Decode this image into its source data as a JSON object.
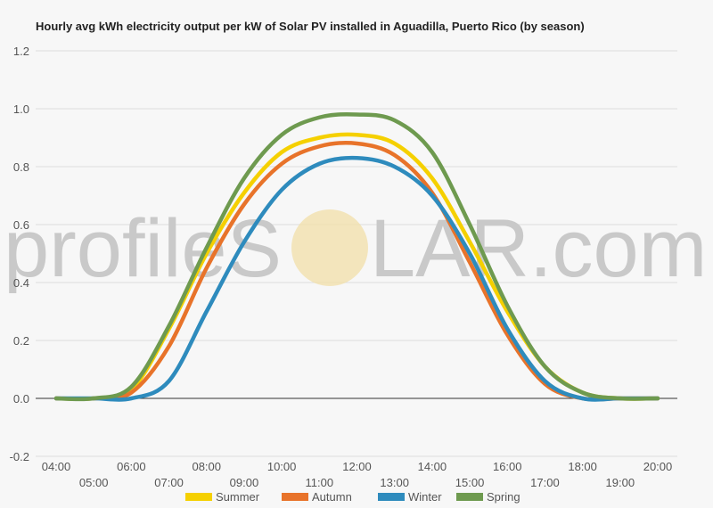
{
  "chart_data": {
    "type": "line",
    "title": "Hourly avg kWh electricity output per kW of Solar PV installed in Aguadilla, Puerto Rico (by season)",
    "xlabel": "",
    "ylabel": "",
    "ylim": [
      -0.2,
      1.2
    ],
    "yticks": [
      "-0.2",
      "0.0",
      "0.2",
      "0.4",
      "0.6",
      "0.8",
      "1.0",
      "1.2"
    ],
    "yticks_values": [
      -0.2,
      0,
      0.2,
      0.4,
      0.6,
      0.8,
      1.0,
      1.2
    ],
    "categories": [
      "04:00",
      "05:00",
      "06:00",
      "07:00",
      "08:00",
      "09:00",
      "10:00",
      "11:00",
      "12:00",
      "13:00",
      "14:00",
      "15:00",
      "16:00",
      "17:00",
      "18:00",
      "19:00",
      "20:00"
    ],
    "grid": true,
    "legend_position": "bottom",
    "watermark": {
      "left": "profileS",
      "right": "LAR.com"
    },
    "series": [
      {
        "name": "Summer",
        "color": "#f5d000",
        "values": [
          0,
          0,
          0.03,
          0.24,
          0.5,
          0.71,
          0.85,
          0.9,
          0.91,
          0.88,
          0.76,
          0.54,
          0.3,
          0.11,
          0.02,
          0,
          0
        ]
      },
      {
        "name": "Autumn",
        "color": "#e8732a",
        "values": [
          0,
          0,
          0.02,
          0.18,
          0.45,
          0.67,
          0.81,
          0.87,
          0.88,
          0.84,
          0.71,
          0.47,
          0.22,
          0.05,
          0,
          0,
          0
        ]
      },
      {
        "name": "Winter",
        "color": "#2e8bbd",
        "values": [
          0,
          0,
          0,
          0.06,
          0.3,
          0.54,
          0.72,
          0.81,
          0.83,
          0.8,
          0.7,
          0.5,
          0.24,
          0.06,
          0,
          0,
          0
        ]
      },
      {
        "name": "Spring",
        "color": "#6e9a4f",
        "values": [
          0,
          0,
          0.04,
          0.25,
          0.52,
          0.76,
          0.91,
          0.97,
          0.98,
          0.96,
          0.85,
          0.6,
          0.32,
          0.11,
          0.02,
          0,
          0
        ]
      }
    ]
  }
}
